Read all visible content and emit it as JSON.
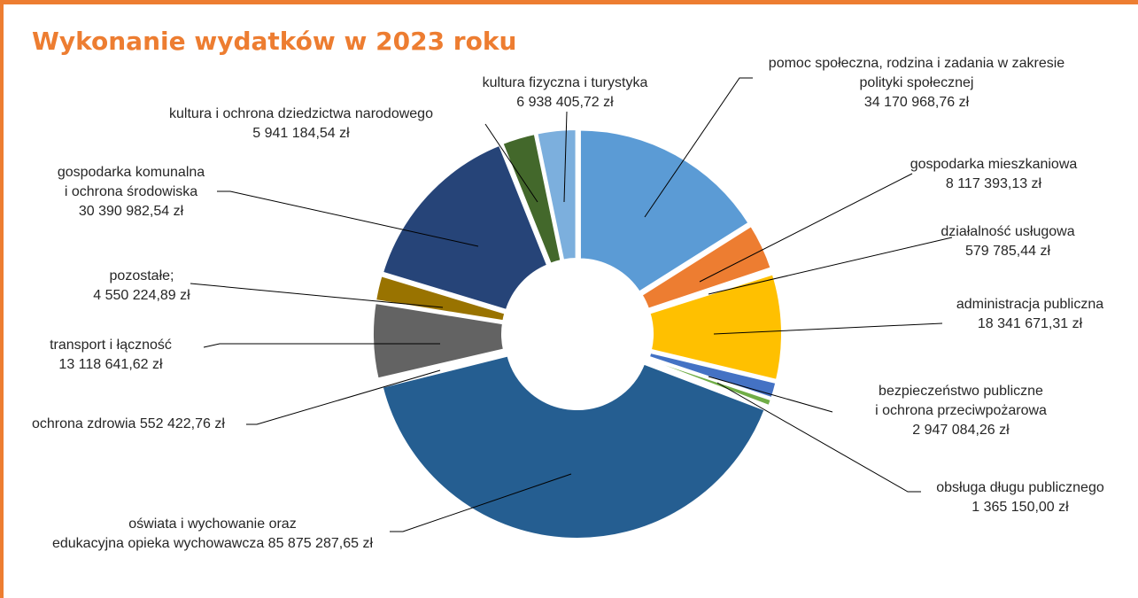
{
  "chart_data": {
    "type": "pie",
    "variant": "doughnut",
    "title": "Wykonanie wydatków w 2023 roku",
    "legend": "none",
    "slices": [
      {
        "label": [
          "pomoc społeczna, rodzina i zadania w zakresie",
          "polityki społecznej"
        ],
        "value_label": "34 170 968,76 zł",
        "value": 34170968.76,
        "color": "#5B9BD5"
      },
      {
        "label": [
          "gospodarka mieszkaniowa"
        ],
        "value_label": "8 117 393,13 zł",
        "value": 8117393.13,
        "color": "#ED7D31"
      },
      {
        "label": [
          "działalność usługowa"
        ],
        "value_label": "579 785,44 zł",
        "value": 579785.44,
        "color": "#A5A5A5"
      },
      {
        "label": [
          "administracja publiczna"
        ],
        "value_label": "18 341 671,31 zł",
        "value": 18341671.31,
        "color": "#FFC000"
      },
      {
        "label": [
          "bezpieczeństwo publiczne",
          "i ochrona przeciwpożarowa"
        ],
        "value_label": "2 947 084,26 zł",
        "value": 2947084.26,
        "color": "#4472C4"
      },
      {
        "label": [
          "obsługa długu publicznego"
        ],
        "value_label": "1 365 150,00 zł",
        "value": 1365150.0,
        "color": "#70AD47"
      },
      {
        "label": [
          "oświata i wychowanie oraz"
        ],
        "value_label": "edukacyjna opieka wychowawcza 85 875 287,65 zł",
        "value": 85875287.65,
        "color": "#255E91"
      },
      {
        "label": [],
        "value_label": "ochrona zdrowia 552 422,76 zł",
        "value": 552422.76,
        "color": "#9E480E"
      },
      {
        "label": [
          "transport i łączność"
        ],
        "value_label": "13 118 641,62 zł",
        "value": 13118641.62,
        "color": "#636363"
      },
      {
        "label": [
          "pozostałe;"
        ],
        "value_label": "4 550 224,89 zł",
        "value": 4550224.89,
        "color": "#997300"
      },
      {
        "label": [
          "gospodarka komunalna",
          "i ochrona środowiska"
        ],
        "value_label": "30 390 982,54 zł",
        "value": 30390982.54,
        "color": "#264478"
      },
      {
        "label": [
          "kultura i ochrona dziedzictwa narodowego"
        ],
        "value_label": "5 941 184,54 zł",
        "value": 5941184.54,
        "color": "#43682B"
      },
      {
        "label": [
          "kultura fizyczna i turystyka"
        ],
        "value_label": "6 938 405,72 zł",
        "value": 6938405.72,
        "color": "#7CAFDD"
      }
    ]
  }
}
